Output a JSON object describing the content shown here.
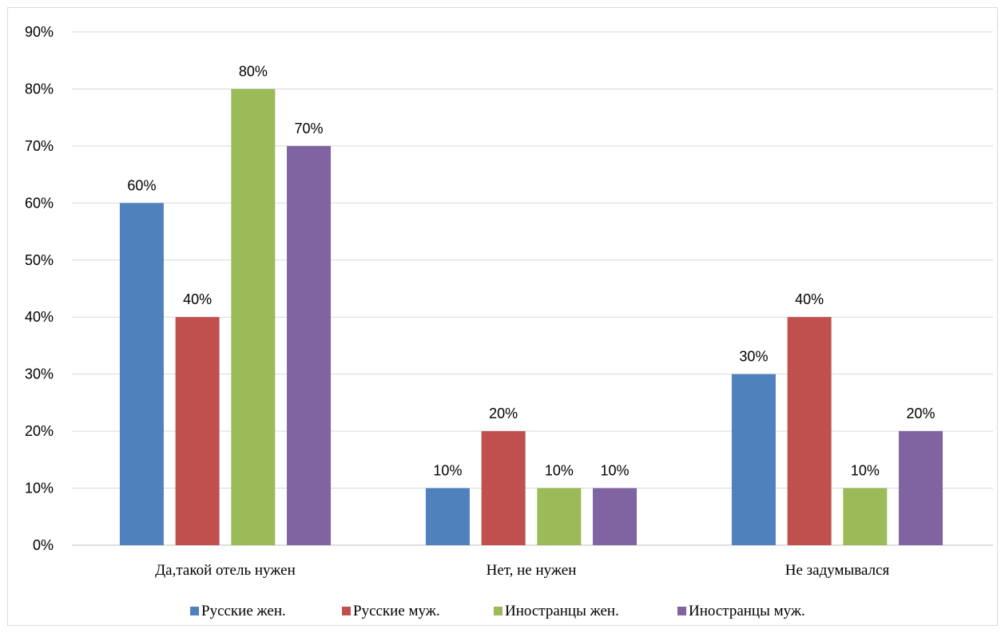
{
  "chart_data": {
    "type": "bar",
    "title": "",
    "xlabel": "",
    "ylabel": "",
    "categories": [
      "Да,такой отель нужен",
      "Нет, не нужен",
      "Не задумывался"
    ],
    "series": [
      {
        "name": "Русские жен.",
        "values": [
          60,
          10,
          30
        ],
        "color": "#4f81bd"
      },
      {
        "name": "Русские муж.",
        "values": [
          40,
          20,
          40
        ],
        "color": "#c0504d"
      },
      {
        "name": "Иностранцы жен.",
        "values": [
          80,
          10,
          10
        ],
        "color": "#9bbb59"
      },
      {
        "name": "Иностранцы муж.",
        "values": [
          70,
          10,
          20
        ],
        "color": "#8064a2"
      }
    ],
    "ylim": [
      0,
      90
    ],
    "y_ticks": [
      "0%",
      "10%",
      "20%",
      "30%",
      "40%",
      "50%",
      "60%",
      "70%",
      "80%",
      "90%"
    ],
    "value_format": "percent",
    "grid": true,
    "legend_position": "bottom",
    "data_labels": true
  }
}
